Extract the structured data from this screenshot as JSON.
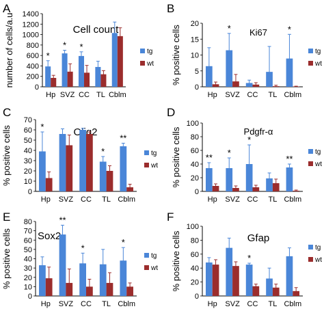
{
  "colors": {
    "tg": "#4a86d8",
    "wt": "#9b2d2d",
    "error": "#000000"
  },
  "chart_data": [
    {
      "panel_letter": "A",
      "type": "bar",
      "title": "Cell count",
      "ylabel": "number of cells/a.u",
      "ylim": [
        0,
        1400
      ],
      "yticks": [
        0,
        200,
        400,
        600,
        800,
        1000,
        1200,
        1400
      ],
      "categories": [
        "Hp",
        "SVZ",
        "CC",
        "TL",
        "Cblm"
      ],
      "series": [
        {
          "name": "tg",
          "values": [
            390,
            640,
            590,
            380,
            1030
          ],
          "errors": [
            110,
            60,
            80,
            110,
            210
          ]
        },
        {
          "name": "wt",
          "values": [
            170,
            290,
            270,
            240,
            970
          ],
          "errors": [
            50,
            150,
            140,
            70,
            160
          ]
        }
      ],
      "significance": [
        "*",
        "*",
        "*",
        "",
        ""
      ],
      "legend": {
        "placement": "right",
        "entries": [
          "tg",
          "wt"
        ]
      }
    },
    {
      "panel_letter": "B",
      "type": "bar",
      "title": "Ki67",
      "ylabel": "% positive cells",
      "ylim": [
        0,
        20
      ],
      "yticks": [
        0,
        5,
        10,
        15,
        20
      ],
      "categories": [
        "Hp",
        "SVZ",
        "CC",
        "TL",
        "Cblm"
      ],
      "series": [
        {
          "name": "tg",
          "values": [
            6.5,
            11.5,
            1.2,
            4.7,
            8.9
          ],
          "errors": [
            5.8,
            5.3,
            0.9,
            8.0,
            7.6
          ]
        },
        {
          "name": "wt",
          "values": [
            0.8,
            1.7,
            0.7,
            0.2,
            0.1
          ],
          "errors": [
            0.7,
            2.2,
            0.6,
            0.3,
            0.1
          ]
        }
      ],
      "significance": [
        "",
        "*",
        "",
        "",
        "*"
      ],
      "legend": {
        "placement": "right",
        "entries": [
          "tg",
          "wt"
        ]
      }
    },
    {
      "panel_letter": "C",
      "type": "bar",
      "title": "Olig2",
      "ylabel": "% positive cells",
      "ylim": [
        0,
        70
      ],
      "yticks": [
        0,
        10,
        20,
        30,
        40,
        50,
        60,
        70
      ],
      "categories": [
        "Hp",
        "SVZ",
        "CC",
        "TL",
        "Cblm"
      ],
      "series": [
        {
          "name": "tg",
          "values": [
            39,
            56,
            60,
            29,
            44
          ],
          "errors": [
            19,
            5,
            1.5,
            5,
            3
          ]
        },
        {
          "name": "wt",
          "values": [
            13,
            45,
            56,
            20,
            4
          ],
          "errors": [
            6,
            10,
            2,
            5,
            3
          ]
        }
      ],
      "significance": [
        "*",
        "",
        "",
        "*",
        "**"
      ],
      "legend": {
        "placement": "right",
        "entries": [
          "tg",
          "wt"
        ]
      }
    },
    {
      "panel_letter": "D",
      "type": "bar",
      "title": "Pdgfr-α",
      "ylabel": "% positive cells",
      "ylim": [
        0,
        100
      ],
      "yticks": [
        0,
        20,
        40,
        60,
        80,
        100
      ],
      "categories": [
        "Hp",
        "SVZ",
        "CC",
        "TL",
        "Cblm"
      ],
      "series": [
        {
          "name": "tg",
          "values": [
            34,
            34,
            40,
            19,
            35
          ],
          "errors": [
            8,
            15,
            28,
            8,
            5
          ]
        },
        {
          "name": "wt",
          "values": [
            8,
            5,
            6,
            12,
            1
          ],
          "errors": [
            3,
            3,
            3,
            6,
            1
          ]
        }
      ],
      "significance": [
        "**",
        "*",
        "*",
        "",
        "**"
      ],
      "legend": {
        "placement": "right",
        "entries": [
          "tg",
          "wt"
        ]
      }
    },
    {
      "panel_letter": "E",
      "type": "bar",
      "title": "Sox2",
      "ylabel": "% positive cells",
      "ylim": [
        0,
        80
      ],
      "yticks": [
        0,
        10,
        20,
        30,
        40,
        50,
        60,
        70,
        80
      ],
      "categories": [
        "Hp",
        "SVZ",
        "CC",
        "TL",
        "Cblm"
      ],
      "series": [
        {
          "name": "tg",
          "values": [
            33,
            66,
            35,
            34,
            38
          ],
          "errors": [
            9,
            10,
            11,
            16,
            14
          ]
        },
        {
          "name": "wt",
          "values": [
            19,
            14,
            10,
            14,
            10
          ],
          "errors": [
            12,
            15,
            8,
            11,
            4
          ]
        }
      ],
      "significance": [
        "",
        "**",
        "*",
        "",
        "*"
      ],
      "legend": {
        "placement": "right",
        "entries": [
          "tg",
          "wt"
        ]
      }
    },
    {
      "panel_letter": "F",
      "type": "bar",
      "title": "Gfap",
      "ylabel": "% positive cells",
      "ylim": [
        0,
        100
      ],
      "yticks": [
        0,
        20,
        40,
        60,
        80,
        100
      ],
      "categories": [
        "Hp",
        "SVZ",
        "CC",
        "TL",
        "Cblm"
      ],
      "series": [
        {
          "name": "tg",
          "values": [
            48,
            69,
            45,
            25,
            57
          ],
          "errors": [
            7,
            14,
            2,
            15,
            12
          ]
        },
        {
          "name": "wt",
          "values": [
            45,
            43,
            14,
            12,
            7
          ],
          "errors": [
            7,
            6,
            3,
            5,
            5
          ]
        }
      ],
      "significance": [
        "",
        "",
        "*",
        "",
        ""
      ],
      "legend": {
        "placement": "right",
        "entries": [
          "tg",
          "wt"
        ]
      }
    }
  ]
}
